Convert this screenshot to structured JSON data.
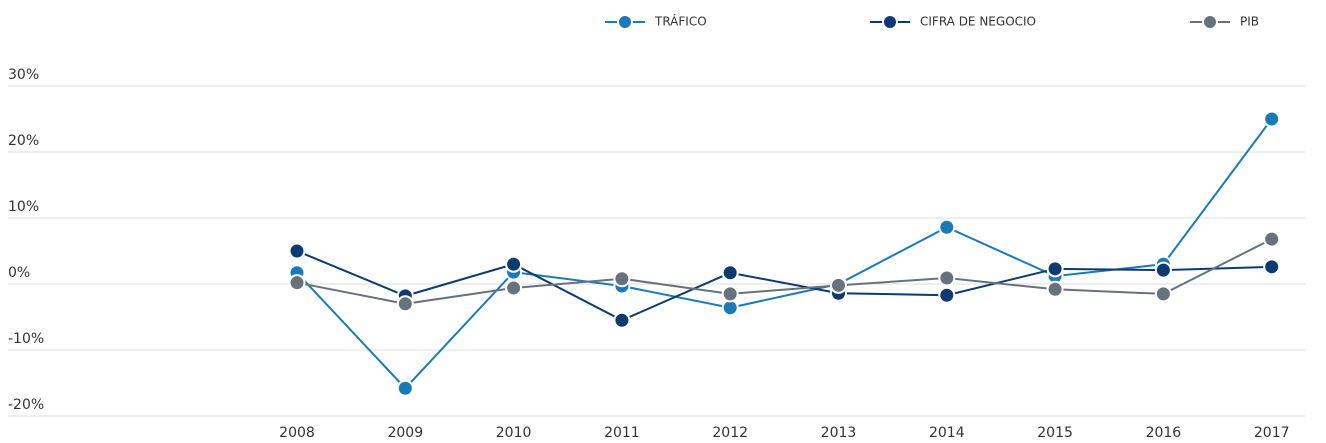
{
  "chart_data": {
    "type": "line",
    "categories": [
      "2008",
      "2009",
      "2010",
      "2011",
      "2012",
      "2013",
      "2014",
      "2015",
      "2016",
      "2017"
    ],
    "series": [
      {
        "name": "TRÁFICO",
        "color": "#1a7ab8",
        "values": [
          1.7,
          -15.8,
          1.8,
          -0.3,
          -3.6,
          0,
          8.6,
          1.2,
          3.0,
          25
        ]
      },
      {
        "name": "CIFRA DE NEGOCIO",
        "color": "#0d3a70",
        "values": [
          5.0,
          -1.8,
          3.0,
          -5.5,
          1.7,
          -1.4,
          -1.7,
          2.3,
          2.1,
          2.6
        ]
      },
      {
        "name": "PIB",
        "color": "#68727d",
        "values": [
          0.2,
          -3.0,
          -0.6,
          0.8,
          -1.5,
          -0.2,
          0.9,
          -0.8,
          -1.5,
          6.8
        ]
      }
    ],
    "ylim": [
      -20,
      30
    ],
    "yticks": [
      {
        "value": -20,
        "label": "-20%"
      },
      {
        "value": -10,
        "label": "-10%"
      },
      {
        "value": 0,
        "label": "0%"
      },
      {
        "value": 10,
        "label": "10%"
      },
      {
        "value": 20,
        "label": "20%"
      },
      {
        "value": 30,
        "label": "30%"
      }
    ],
    "grid": true,
    "legend": "top"
  }
}
